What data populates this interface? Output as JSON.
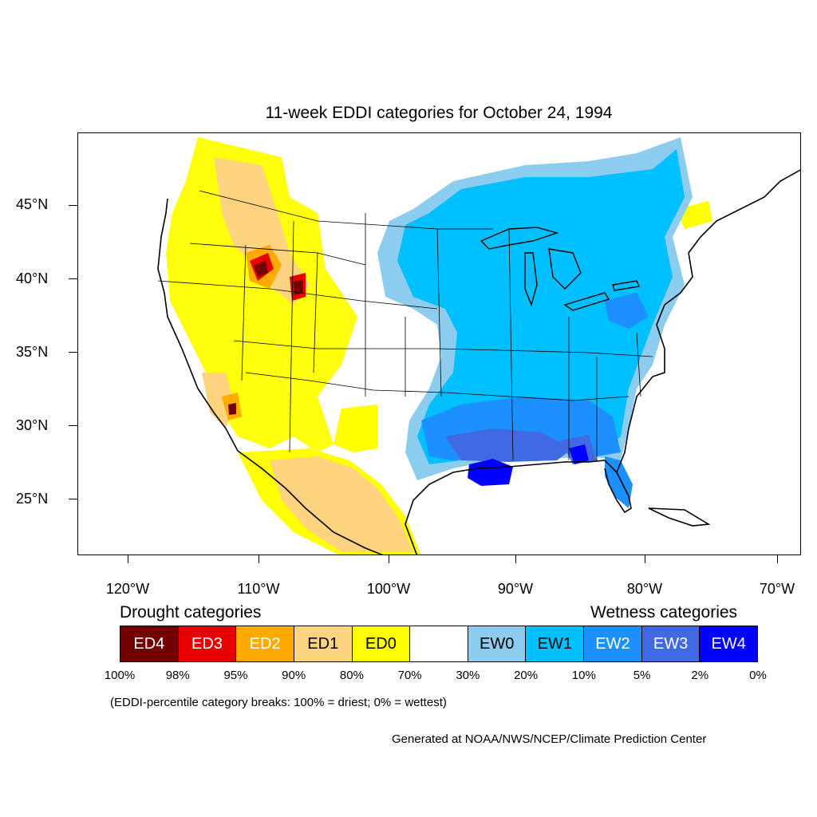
{
  "title": "11-week EDDI categories for October 24, 1994",
  "latitude_labels": [
    "45°N",
    "40°N",
    "35°N",
    "30°N",
    "25°N"
  ],
  "longitude_labels": [
    "120°W",
    "110°W",
    "100°W",
    "90°W",
    "80°W",
    "70°W"
  ],
  "legend": {
    "drought_heading": "Drought categories",
    "wetness_heading": "Wetness categories",
    "categories": [
      {
        "label": "ED4",
        "color": "#730000",
        "text_color": "#ffffff"
      },
      {
        "label": "ED3",
        "color": "#e60000",
        "text_color": "#ffffff"
      },
      {
        "label": "ED2",
        "color": "#ffaa00",
        "text_color": "#ffffff"
      },
      {
        "label": "ED1",
        "color": "#fcd37f",
        "text_color": "#000000"
      },
      {
        "label": "ED0",
        "color": "#ffff00",
        "text_color": "#000000"
      },
      {
        "label": "",
        "color": "#ffffff",
        "text_color": "#000000"
      },
      {
        "label": "EW0",
        "color": "#8ccdef",
        "text_color": "#000000"
      },
      {
        "label": "EW1",
        "color": "#00bfff",
        "text_color": "#000000"
      },
      {
        "label": "EW2",
        "color": "#1d90ff",
        "text_color": "#ffffff"
      },
      {
        "label": "EW3",
        "color": "#4169e1",
        "text_color": "#ffffff"
      },
      {
        "label": "EW4",
        "color": "#0000ff",
        "text_color": "#ffffff"
      }
    ],
    "percent_breaks": [
      "100%",
      "98%",
      "95%",
      "90%",
      "80%",
      "70%",
      "30%",
      "20%",
      "10%",
      "5%",
      "2%",
      "0%"
    ]
  },
  "note": "(EDDI-percentile category breaks: 100% = driest; 0% = wettest)",
  "credit": "Generated at NOAA/NWS/NCEP/Climate Prediction Center"
}
